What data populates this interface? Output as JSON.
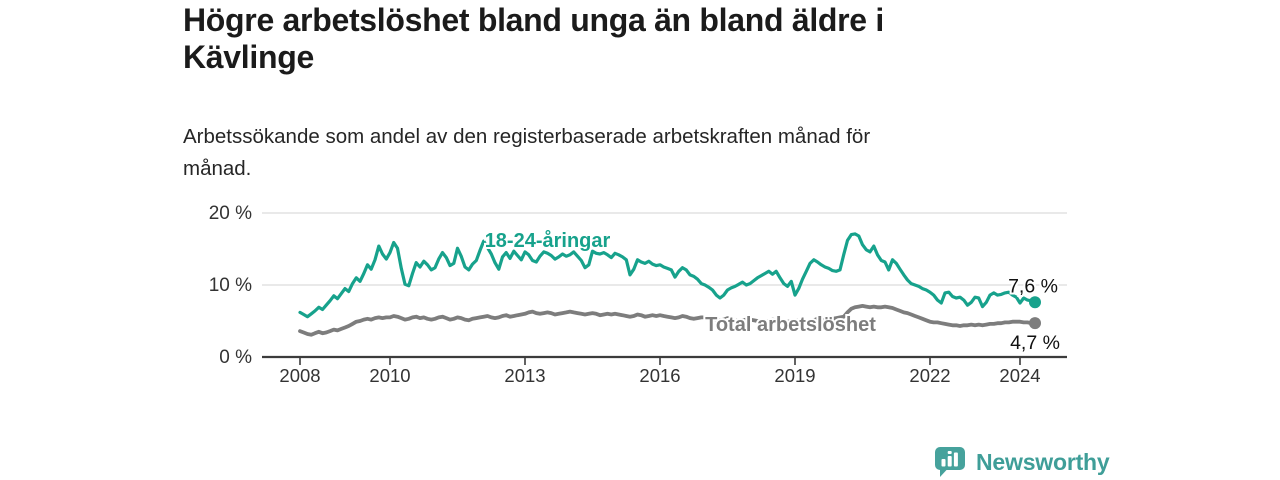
{
  "title_lines": [
    "Högre arbetslöshet bland unga än bland äldre i",
    "Kävlinge"
  ],
  "subtitle_lines": [
    "Arbetssökande som andel av den registerbaserade arbetskraften månad för",
    "månad."
  ],
  "branding": {
    "logo_text": "Newsworthy",
    "logo_icon": "bar-chart-speech-bubble-icon",
    "brand_color": "#46a29c"
  },
  "colors": {
    "youth_line": "#17a28c",
    "total_line": "#7d7d7d",
    "grid": "#dcdcdc",
    "axis": "#3c3c3c",
    "tick_text": "#333333",
    "value_text": "#111111",
    "title_text": "#1b1b1b"
  },
  "chart_data": {
    "type": "line",
    "title": "Högre arbetslöshet bland unga än bland äldre i Kävlinge",
    "subtitle": "Arbetssökande som andel av den registerbaserade arbetskraften månad för månad.",
    "x_unit": "month",
    "x_start": {
      "year": 2008,
      "month": 1
    },
    "x_axis": {
      "ticks": [
        2008,
        2010,
        2013,
        2016,
        2019,
        2022,
        2024
      ],
      "tick_labels": [
        "2008",
        "2010",
        "2013",
        "2016",
        "2019",
        "2022",
        "2024"
      ],
      "range": [
        2007.1,
        2025.0
      ]
    },
    "y_axis": {
      "ticks": [
        0,
        10,
        20
      ],
      "tick_labels": [
        "0 %",
        "10 %",
        "20 %"
      ],
      "grid_values": [
        10,
        20
      ],
      "range": [
        0,
        21.8
      ]
    },
    "legend_position": "inline-labels",
    "grid": "horizontal-only",
    "series": [
      {
        "name": "18-24-åringar",
        "color": "#17a28c",
        "label_anchor": {
          "year": 2013.5,
          "value": 15.3
        },
        "value_label": {
          "text": "7,6 %",
          "side": "above"
        },
        "end_value": 7.6,
        "monthly_values": [
          6.2,
          5.9,
          5.6,
          6.0,
          6.4,
          6.9,
          6.6,
          7.2,
          7.8,
          8.5,
          8.1,
          8.8,
          9.5,
          9.1,
          10.2,
          11.0,
          10.5,
          11.6,
          12.8,
          12.2,
          13.5,
          15.4,
          14.3,
          13.6,
          14.5,
          15.9,
          15.1,
          12.3,
          10.1,
          9.9,
          11.6,
          13.1,
          12.5,
          13.3,
          12.8,
          12.1,
          12.4,
          13.6,
          14.5,
          13.8,
          12.7,
          13.0,
          15.1,
          14.0,
          12.5,
          12.1,
          12.9,
          13.4,
          14.8,
          16.1,
          15.2,
          14.3,
          13.1,
          12.2,
          13.9,
          14.5,
          13.7,
          14.7,
          14.1,
          13.5,
          14.6,
          14.2,
          13.4,
          13.2,
          14.0,
          14.6,
          14.4,
          14.1,
          13.6,
          13.9,
          14.3,
          14.0,
          14.2,
          14.6,
          14.0,
          13.4,
          12.4,
          12.8,
          14.7,
          14.4,
          14.3,
          14.5,
          14.2,
          13.8,
          14.4,
          14.2,
          13.9,
          13.5,
          11.4,
          12.2,
          13.5,
          13.2,
          13.0,
          13.3,
          12.9,
          12.7,
          12.8,
          12.5,
          12.3,
          12.1,
          11.1,
          11.9,
          12.4,
          12.1,
          11.4,
          11.2,
          10.8,
          10.2,
          10.0,
          9.7,
          9.3,
          8.6,
          8.2,
          8.6,
          9.3,
          9.6,
          9.8,
          10.1,
          10.4,
          10.0,
          10.2,
          10.6,
          11.0,
          11.3,
          11.6,
          11.9,
          11.5,
          11.9,
          11.0,
          10.2,
          9.8,
          10.5,
          8.6,
          9.5,
          10.8,
          11.9,
          13.0,
          13.5,
          13.2,
          12.8,
          12.5,
          12.3,
          12.0,
          11.9,
          12.1,
          14.2,
          16.2,
          17.0,
          17.1,
          16.8,
          15.6,
          14.9,
          14.6,
          15.4,
          14.2,
          13.4,
          13.2,
          12.1,
          13.5,
          13.0,
          12.2,
          11.4,
          10.7,
          10.2,
          10.0,
          9.8,
          9.5,
          9.3,
          9.0,
          8.6,
          7.9,
          7.5,
          8.9,
          9.0,
          8.4,
          8.2,
          8.3,
          7.9,
          7.2,
          7.6,
          8.3,
          8.2,
          7.0,
          7.6,
          8.6,
          8.9,
          8.6,
          8.7,
          8.9,
          9.0,
          8.6,
          8.3,
          7.5,
          8.2,
          7.9,
          7.8,
          7.6
        ]
      },
      {
        "name": "Total arbetslöshet",
        "color": "#7d7d7d",
        "label_anchor": {
          "year": 2018.9,
          "value": 3.6
        },
        "value_label": {
          "text": "4,7 %",
          "side": "below"
        },
        "end_value": 4.7,
        "monthly_values": [
          3.6,
          3.4,
          3.2,
          3.1,
          3.3,
          3.5,
          3.3,
          3.4,
          3.6,
          3.8,
          3.7,
          3.9,
          4.1,
          4.3,
          4.6,
          4.9,
          5.0,
          5.2,
          5.3,
          5.2,
          5.4,
          5.5,
          5.4,
          5.5,
          5.5,
          5.7,
          5.6,
          5.4,
          5.2,
          5.3,
          5.5,
          5.6,
          5.4,
          5.5,
          5.3,
          5.2,
          5.3,
          5.5,
          5.6,
          5.4,
          5.2,
          5.3,
          5.5,
          5.4,
          5.2,
          5.1,
          5.3,
          5.4,
          5.5,
          5.6,
          5.7,
          5.5,
          5.4,
          5.5,
          5.7,
          5.8,
          5.6,
          5.7,
          5.8,
          5.9,
          6.0,
          6.2,
          6.3,
          6.1,
          6.0,
          6.1,
          6.2,
          6.1,
          5.9,
          6.0,
          6.1,
          6.2,
          6.3,
          6.2,
          6.1,
          6.0,
          5.9,
          6.0,
          6.1,
          6.0,
          5.8,
          5.9,
          6.0,
          5.9,
          6.0,
          5.9,
          5.8,
          5.7,
          5.6,
          5.7,
          5.9,
          5.8,
          5.6,
          5.7,
          5.8,
          5.7,
          5.8,
          5.7,
          5.6,
          5.5,
          5.4,
          5.5,
          5.7,
          5.6,
          5.4,
          5.3,
          5.4,
          5.5,
          5.5,
          5.4,
          5.3,
          5.2,
          5.1,
          5.2,
          5.4,
          5.3,
          5.1,
          5.0,
          5.1,
          5.2,
          5.2,
          5.1,
          5.0,
          4.9,
          4.9,
          5.0,
          5.2,
          5.1,
          4.9,
          4.8,
          4.9,
          5.0,
          5.0,
          5.1,
          5.0,
          4.9,
          5.0,
          5.1,
          5.3,
          5.2,
          5.1,
          5.2,
          5.3,
          5.4,
          5.5,
          5.6,
          6.2,
          6.7,
          6.9,
          7.0,
          7.1,
          7.0,
          6.9,
          7.0,
          6.9,
          6.9,
          7.0,
          6.9,
          6.8,
          6.6,
          6.4,
          6.2,
          6.1,
          5.9,
          5.7,
          5.5,
          5.3,
          5.1,
          4.9,
          4.8,
          4.8,
          4.7,
          4.6,
          4.5,
          4.4,
          4.4,
          4.3,
          4.4,
          4.4,
          4.5,
          4.4,
          4.5,
          4.4,
          4.5,
          4.6,
          4.6,
          4.7,
          4.7,
          4.8,
          4.8,
          4.9,
          4.9,
          4.9,
          4.8,
          4.8,
          4.7,
          4.7
        ]
      }
    ]
  }
}
